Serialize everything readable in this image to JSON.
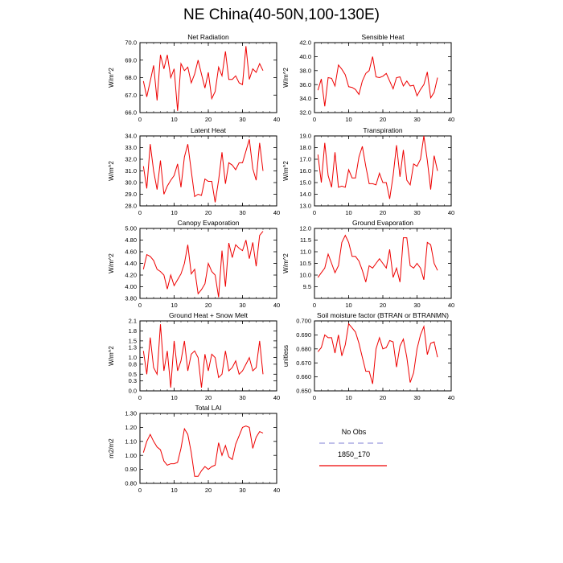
{
  "page": {
    "title": "NE China(40-50N,100-130E)"
  },
  "legend": {
    "entries": [
      {
        "label": "No Obs",
        "color": "#9999dd",
        "style": "dashed"
      },
      {
        "label": "1850_170",
        "color": "#ee0000",
        "style": "solid"
      }
    ]
  },
  "chart_data": [
    {
      "type": "line",
      "title": "Net Radiation",
      "xlabel": "",
      "ylabel": "W/m^2",
      "xlim": [
        0,
        40
      ],
      "ylim": [
        66.0,
        70.0
      ],
      "xticks": [
        "0",
        "10",
        "20",
        "30",
        "40"
      ],
      "yticks": [
        "66.0",
        "67.0",
        "68.0",
        "69.0",
        "70.0"
      ],
      "series": [
        {
          "name": "1850_170",
          "color": "#ee0000",
          "x": [
            1,
            2,
            3,
            4,
            5,
            6,
            7,
            8,
            9,
            10,
            11,
            12,
            13,
            14,
            15,
            16,
            17,
            18,
            19,
            20,
            21,
            22,
            23,
            24,
            25,
            26,
            27,
            28,
            29,
            30,
            31,
            32,
            33,
            34,
            35,
            36
          ],
          "y": [
            67.8,
            66.9,
            67.8,
            68.7,
            66.7,
            69.3,
            68.5,
            69.3,
            68.0,
            68.5,
            66.1,
            68.8,
            68.4,
            68.6,
            67.7,
            68.2,
            69.0,
            68.2,
            67.4,
            68.3,
            66.8,
            67.2,
            68.6,
            68.1,
            69.5,
            67.9,
            67.9,
            68.1,
            67.7,
            67.6,
            69.8,
            67.9,
            68.5,
            68.3,
            68.8,
            68.4
          ]
        }
      ]
    },
    {
      "type": "line",
      "title": "Sensible Heat",
      "xlabel": "",
      "ylabel": "W/m^2",
      "xlim": [
        0,
        40
      ],
      "ylim": [
        32.0,
        42.0
      ],
      "xticks": [
        "0",
        "10",
        "20",
        "30",
        "40"
      ],
      "yticks": [
        "32.0",
        "34.0",
        "36.0",
        "38.0",
        "40.0",
        "42.0"
      ],
      "series": [
        {
          "name": "1850_170",
          "color": "#ee0000",
          "x": [
            1,
            2,
            3,
            4,
            5,
            6,
            7,
            8,
            9,
            10,
            11,
            12,
            13,
            14,
            15,
            16,
            17,
            18,
            19,
            20,
            21,
            22,
            23,
            24,
            25,
            26,
            27,
            28,
            29,
            30,
            31,
            32,
            33,
            34,
            35,
            36
          ],
          "y": [
            35.2,
            36.8,
            32.9,
            37.0,
            36.9,
            35.8,
            38.8,
            38.2,
            37.4,
            35.7,
            35.6,
            35.3,
            34.6,
            36.5,
            37.6,
            38.0,
            40.0,
            37.1,
            37.0,
            37.2,
            37.6,
            36.5,
            35.4,
            37.0,
            37.1,
            35.8,
            36.5,
            35.8,
            35.9,
            34.4,
            35.3,
            36.0,
            37.8,
            34.1,
            34.9,
            37.0
          ]
        }
      ]
    },
    {
      "type": "line",
      "title": "Latent Heat",
      "xlabel": "",
      "ylabel": "W/m^2",
      "xlim": [
        0,
        40
      ],
      "ylim": [
        28.0,
        34.0
      ],
      "xticks": [
        "0",
        "10",
        "20",
        "30",
        "40"
      ],
      "yticks": [
        "28.0",
        "29.0",
        "30.0",
        "31.0",
        "32.0",
        "33.0",
        "34.0"
      ],
      "series": [
        {
          "name": "1850_170",
          "color": "#ee0000",
          "x": [
            1,
            2,
            3,
            4,
            5,
            6,
            7,
            8,
            9,
            10,
            11,
            12,
            13,
            14,
            15,
            16,
            17,
            18,
            19,
            20,
            21,
            22,
            23,
            24,
            25,
            26,
            27,
            28,
            29,
            30,
            31,
            32,
            33,
            34,
            35,
            36
          ],
          "y": [
            31.4,
            29.5,
            33.3,
            31.0,
            29.4,
            31.9,
            29.0,
            29.7,
            30.2,
            30.6,
            31.6,
            29.6,
            32.2,
            33.3,
            31.0,
            28.8,
            29.0,
            28.9,
            30.3,
            30.1,
            30.1,
            28.3,
            30.2,
            32.6,
            29.9,
            31.7,
            31.5,
            31.1,
            31.7,
            31.7,
            32.7,
            33.7,
            31.2,
            30.2,
            33.4,
            31.0
          ]
        }
      ]
    },
    {
      "type": "line",
      "title": "Transpiration",
      "xlabel": "",
      "ylabel": "W/m^2",
      "xlim": [
        0,
        40
      ],
      "ylim": [
        13.0,
        19.0
      ],
      "xticks": [
        "0",
        "10",
        "20",
        "30",
        "40"
      ],
      "yticks": [
        "13.0",
        "14.0",
        "15.0",
        "16.0",
        "17.0",
        "18.0",
        "19.0"
      ],
      "series": [
        {
          "name": "1850_170",
          "color": "#ee0000",
          "x": [
            1,
            2,
            3,
            4,
            5,
            6,
            7,
            8,
            9,
            10,
            11,
            12,
            13,
            14,
            15,
            16,
            17,
            18,
            19,
            20,
            21,
            22,
            23,
            24,
            25,
            26,
            27,
            28,
            29,
            30,
            31,
            32,
            33,
            34,
            35,
            36
          ],
          "y": [
            17.4,
            15.0,
            18.4,
            15.6,
            14.6,
            17.6,
            14.6,
            14.7,
            14.6,
            16.1,
            15.4,
            15.4,
            17.2,
            18.1,
            16.4,
            14.9,
            14.9,
            14.8,
            15.8,
            15.0,
            15.0,
            13.6,
            15.6,
            18.2,
            15.5,
            17.8,
            15.2,
            14.8,
            16.6,
            16.4,
            17.0,
            19.0,
            16.9,
            14.4,
            17.3,
            16.0
          ]
        }
      ]
    },
    {
      "type": "line",
      "title": "Canopy Evaporation",
      "xlabel": "",
      "ylabel": "W/m^2",
      "xlim": [
        0,
        40
      ],
      "ylim": [
        3.8,
        5.0
      ],
      "xticks": [
        "0",
        "10",
        "20",
        "30",
        "40"
      ],
      "yticks": [
        "3.80",
        "4.00",
        "4.20",
        "4.40",
        "4.60",
        "4.80",
        "5.00"
      ],
      "series": [
        {
          "name": "1850_170",
          "color": "#ee0000",
          "x": [
            1,
            2,
            3,
            4,
            5,
            6,
            7,
            8,
            9,
            10,
            11,
            12,
            13,
            14,
            15,
            16,
            17,
            18,
            19,
            20,
            21,
            22,
            23,
            24,
            25,
            26,
            27,
            28,
            29,
            30,
            31,
            32,
            33,
            34,
            35,
            36
          ],
          "y": [
            4.3,
            4.55,
            4.52,
            4.45,
            4.3,
            4.26,
            4.2,
            3.96,
            4.2,
            4.02,
            4.12,
            4.22,
            4.4,
            4.72,
            4.22,
            4.3,
            3.88,
            3.95,
            4.05,
            4.4,
            4.26,
            4.2,
            3.82,
            4.62,
            4.0,
            4.75,
            4.5,
            4.72,
            4.66,
            4.62,
            4.8,
            4.48,
            4.76,
            4.35,
            4.88,
            4.95
          ]
        }
      ]
    },
    {
      "type": "line",
      "title": "Ground Evaporation",
      "xlabel": "",
      "ylabel": "W/m^2",
      "xlim": [
        0,
        40
      ],
      "ylim": [
        9.0,
        12.0
      ],
      "xticks": [
        "0",
        "10",
        "20",
        "30",
        "40"
      ],
      "yticks": [
        "9.5",
        "10.0",
        "10.5",
        "11.0",
        "11.5",
        "12.0"
      ],
      "series": [
        {
          "name": "1850_170",
          "color": "#ee0000",
          "x": [
            1,
            2,
            3,
            4,
            5,
            6,
            7,
            8,
            9,
            10,
            11,
            12,
            13,
            14,
            15,
            16,
            17,
            18,
            19,
            20,
            21,
            22,
            23,
            24,
            25,
            26,
            27,
            28,
            29,
            30,
            31,
            32,
            33,
            34,
            35,
            36
          ],
          "y": [
            9.9,
            10.1,
            10.3,
            10.9,
            10.5,
            10.1,
            10.4,
            11.4,
            11.7,
            11.4,
            10.8,
            10.8,
            10.6,
            10.2,
            9.7,
            10.4,
            10.3,
            10.5,
            10.7,
            10.5,
            10.3,
            11.1,
            9.9,
            10.3,
            9.7,
            11.6,
            11.6,
            10.4,
            10.3,
            10.5,
            10.3,
            9.8,
            11.4,
            11.3,
            10.5,
            10.2
          ]
        }
      ]
    },
    {
      "type": "line",
      "title": "Ground Heat + Snow Melt",
      "xlabel": "",
      "ylabel": "W/m^2",
      "xlim": [
        0,
        40
      ],
      "ylim": [
        0.0,
        2.1
      ],
      "xticks": [
        "0",
        "10",
        "20",
        "30",
        "40"
      ],
      "yticks": [
        "0.0",
        "0.3",
        "0.5",
        "0.8",
        "1.0",
        "1.3",
        "1.5",
        "1.8",
        "2.1"
      ],
      "series": [
        {
          "name": "1850_170",
          "color": "#ee0000",
          "x": [
            1,
            2,
            3,
            4,
            5,
            6,
            7,
            8,
            9,
            10,
            11,
            12,
            13,
            14,
            15,
            16,
            17,
            18,
            19,
            20,
            21,
            22,
            23,
            24,
            25,
            26,
            27,
            28,
            29,
            30,
            31,
            32,
            33,
            34,
            35,
            36
          ],
          "y": [
            1.2,
            0.5,
            1.6,
            0.7,
            0.5,
            2.0,
            0.6,
            1.2,
            0.1,
            1.5,
            0.6,
            0.9,
            1.5,
            0.6,
            1.1,
            1.2,
            1.0,
            0.1,
            1.1,
            0.6,
            1.1,
            1.0,
            0.4,
            0.5,
            1.2,
            0.6,
            0.7,
            0.9,
            0.5,
            0.6,
            0.8,
            1.0,
            0.6,
            0.7,
            1.5,
            0.5
          ]
        }
      ]
    },
    {
      "type": "line",
      "title": "Soil moisture factor (BTRAN or BTRANMN)",
      "xlabel": "",
      "ylabel": "unitless",
      "xlim": [
        0,
        40
      ],
      "ylim": [
        0.65,
        0.7
      ],
      "xticks": [
        "0",
        "10",
        "20",
        "30",
        "40"
      ],
      "yticks": [
        "0.650",
        "0.660",
        "0.670",
        "0.680",
        "0.690",
        "0.700"
      ],
      "series": [
        {
          "name": "1850_170",
          "color": "#ee0000",
          "x": [
            1,
            2,
            3,
            4,
            5,
            6,
            7,
            8,
            9,
            10,
            11,
            12,
            13,
            14,
            15,
            16,
            17,
            18,
            19,
            20,
            21,
            22,
            23,
            24,
            25,
            26,
            27,
            28,
            29,
            30,
            31,
            32,
            33,
            34,
            35,
            36
          ],
          "y": [
            0.678,
            0.681,
            0.69,
            0.688,
            0.688,
            0.677,
            0.69,
            0.675,
            0.683,
            0.698,
            0.695,
            0.692,
            0.684,
            0.674,
            0.664,
            0.664,
            0.655,
            0.68,
            0.688,
            0.68,
            0.681,
            0.686,
            0.685,
            0.667,
            0.682,
            0.687,
            0.674,
            0.656,
            0.663,
            0.68,
            0.69,
            0.696,
            0.676,
            0.684,
            0.685,
            0.674
          ]
        }
      ]
    },
    {
      "type": "line",
      "title": "Total LAI",
      "xlabel": "",
      "ylabel": "m2/m2",
      "xlim": [
        0,
        40
      ],
      "ylim": [
        0.8,
        1.3
      ],
      "xticks": [
        "0",
        "10",
        "20",
        "30",
        "40"
      ],
      "yticks": [
        "0.80",
        "0.90",
        "1.00",
        "1.10",
        "1.20",
        "1.30"
      ],
      "series": [
        {
          "name": "1850_170",
          "color": "#ee0000",
          "x": [
            1,
            2,
            3,
            4,
            5,
            6,
            7,
            8,
            9,
            10,
            11,
            12,
            13,
            14,
            15,
            16,
            17,
            18,
            19,
            20,
            21,
            22,
            23,
            24,
            25,
            26,
            27,
            28,
            29,
            30,
            31,
            32,
            33,
            34,
            35,
            36
          ],
          "y": [
            1.02,
            1.1,
            1.15,
            1.1,
            1.06,
            1.04,
            0.96,
            0.93,
            0.94,
            0.94,
            0.95,
            1.05,
            1.19,
            1.15,
            1.02,
            0.85,
            0.85,
            0.89,
            0.92,
            0.9,
            0.92,
            0.93,
            1.09,
            1.0,
            1.07,
            0.99,
            0.97,
            1.08,
            1.14,
            1.2,
            1.21,
            1.2,
            1.05,
            1.13,
            1.17,
            1.16
          ]
        }
      ]
    }
  ]
}
